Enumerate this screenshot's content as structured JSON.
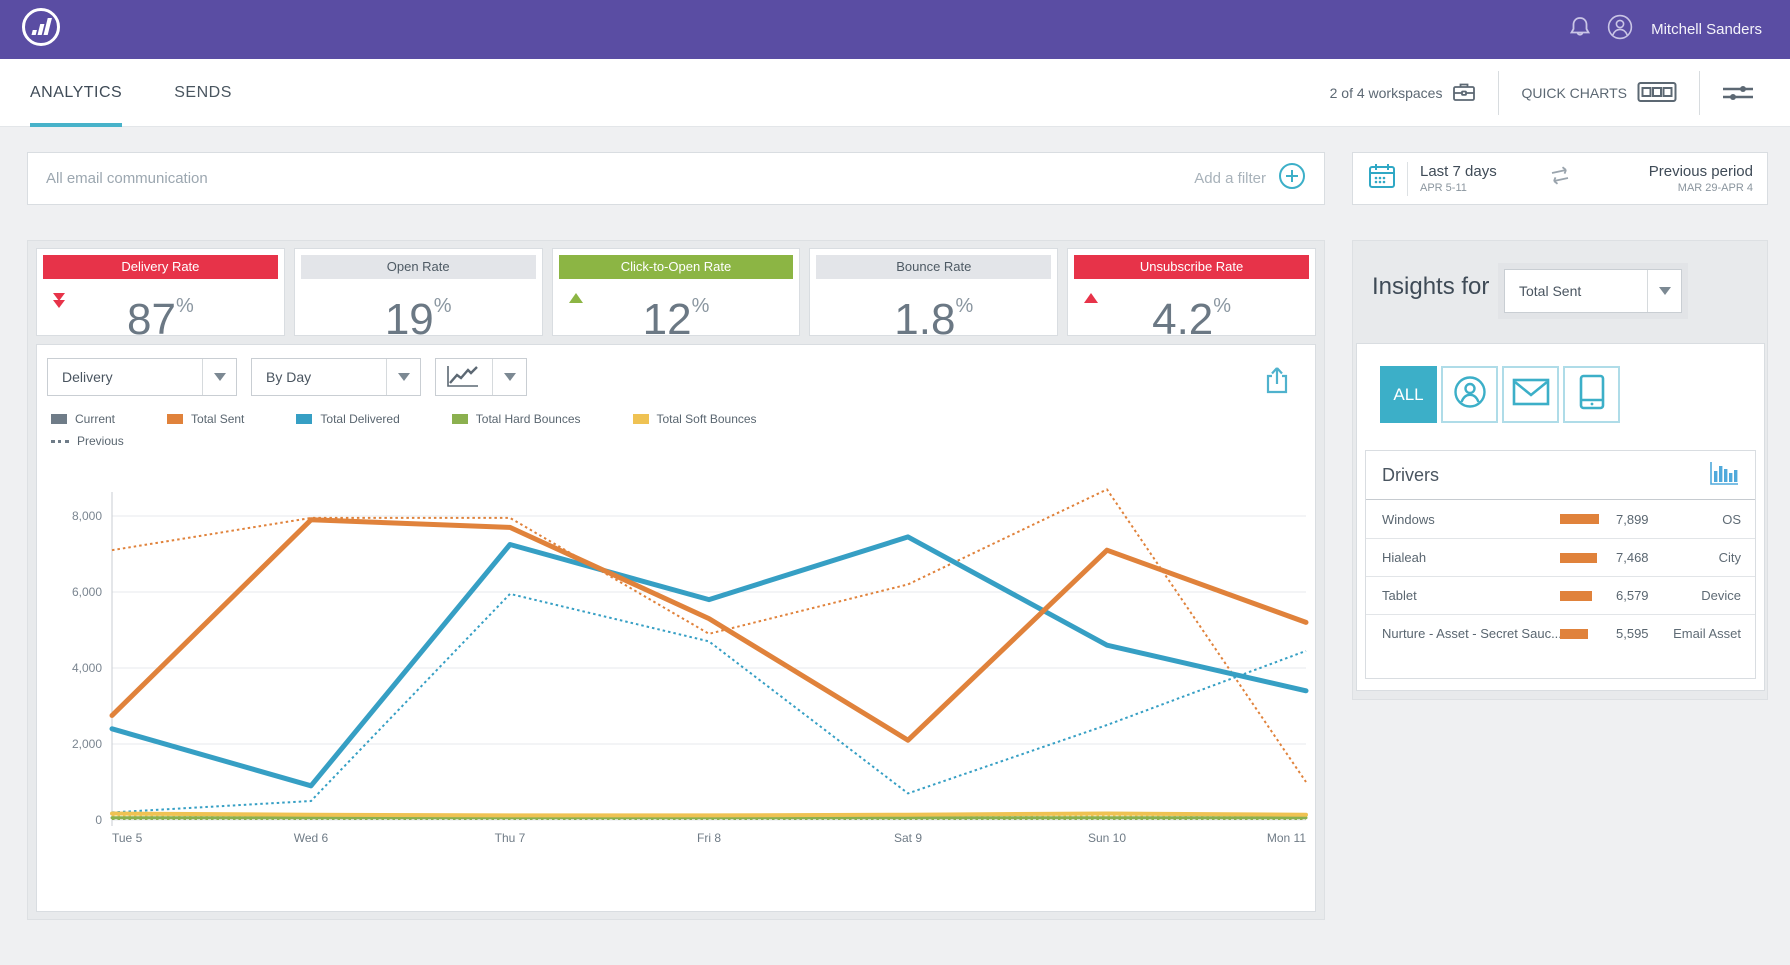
{
  "colors": {
    "brand_purple": "#5A4DA3",
    "accent_teal": "#3CAFC8",
    "kpi_red": "#E73349",
    "kpi_green": "#8CB544",
    "series_orange": "#E0823B",
    "series_blue": "#369FC4",
    "series_green": "#8BB04F",
    "series_yellow": "#EFC253",
    "series_gray": "#6F7C88"
  },
  "topbar": {
    "user_name": "Mitchell Sanders"
  },
  "nav": {
    "tab_analytics": "ANALYTICS",
    "tab_sends": "SENDS",
    "workspaces": "2 of 4 workspaces",
    "quick_charts": "QUICK CHARTS"
  },
  "filter_bar": {
    "scope": "All email communication",
    "add_filter": "Add a filter"
  },
  "date_panel": {
    "range_label": "Last 7 days",
    "range_dates": "APR 5-11",
    "compare_label": "Previous period",
    "compare_dates": "MAR 29-APR 4"
  },
  "kpis": [
    {
      "label": "Delivery Rate",
      "value": "87",
      "unit": "%",
      "band": "red",
      "trend": "down-double"
    },
    {
      "label": "Open Rate",
      "value": "19",
      "unit": "%",
      "band": "gray",
      "trend": "none"
    },
    {
      "label": "Click-to-Open Rate",
      "value": "12",
      "unit": "%",
      "band": "green",
      "trend": "up"
    },
    {
      "label": "Bounce Rate",
      "value": "1.8",
      "unit": "%",
      "band": "gray",
      "trend": "none"
    },
    {
      "label": "Unsubscribe Rate",
      "value": "4.2",
      "unit": "%",
      "band": "red",
      "trend": "up"
    }
  ],
  "chart_controls": {
    "metric": "Delivery",
    "grouping": "By Day"
  },
  "legend": {
    "row1": [
      {
        "label": "Current",
        "color": "#6F7C88"
      },
      {
        "label": "Total Sent",
        "color": "#E0823B"
      },
      {
        "label": "Total Delivered",
        "color": "#369FC4"
      },
      {
        "label": "Total Hard Bounces",
        "color": "#8BB04F"
      },
      {
        "label": "Total Soft Bounces",
        "color": "#EFC253"
      }
    ],
    "row2_label": "Previous"
  },
  "chart_data": {
    "type": "line",
    "x": [
      "Tue 5",
      "Wed 6",
      "Thu 7",
      "Fri 8",
      "Sat 9",
      "Sun 10",
      "Mon 11"
    ],
    "yticks": [
      0,
      2000,
      4000,
      6000,
      8000
    ],
    "ylim": [
      0,
      8800
    ],
    "grid": true,
    "series": [
      {
        "name": "Total Sent",
        "period": "current",
        "style": "solid",
        "color": "#E0823B",
        "width": 5,
        "values": [
          2750,
          7900,
          7700,
          5300,
          2100,
          7100,
          5200
        ]
      },
      {
        "name": "Total Delivered",
        "period": "current",
        "style": "solid",
        "color": "#369FC4",
        "width": 5,
        "values": [
          2400,
          900,
          7250,
          5800,
          7450,
          4600,
          3400
        ]
      },
      {
        "name": "Total Hard Bounces",
        "period": "current",
        "style": "solid",
        "color": "#8BB04F",
        "width": 3,
        "values": [
          60,
          60,
          60,
          60,
          60,
          60,
          60
        ]
      },
      {
        "name": "Total Soft Bounces",
        "period": "current",
        "style": "solid",
        "color": "#EFC253",
        "width": 4,
        "values": [
          170,
          140,
          120,
          120,
          140,
          170,
          140
        ]
      },
      {
        "name": "Total Sent",
        "period": "previous",
        "style": "dotted",
        "color": "#E0823B",
        "width": 2,
        "values": [
          7100,
          7950,
          7950,
          4900,
          6200,
          8700,
          1000
        ]
      },
      {
        "name": "Total Delivered",
        "period": "previous",
        "style": "dotted",
        "color": "#369FC4",
        "width": 2,
        "values": [
          200,
          500,
          5950,
          4700,
          700,
          2500,
          4450
        ]
      },
      {
        "name": "Total Hard Bounces",
        "period": "previous",
        "style": "dotted",
        "color": "#8BB04F",
        "width": 1.5,
        "values": [
          20,
          20,
          20,
          20,
          20,
          20,
          20
        ]
      },
      {
        "name": "Total Soft Bounces",
        "period": "previous",
        "style": "dotted",
        "color": "#EFC253",
        "width": 1.5,
        "values": [
          100,
          90,
          80,
          80,
          90,
          100,
          90
        ]
      }
    ]
  },
  "insights": {
    "title": "Insights for",
    "metric_selector": "Total Sent",
    "filter_all": "ALL",
    "drivers_title": "Drivers",
    "drivers": [
      {
        "name": "Windows",
        "value": "7,899",
        "bar": 7899,
        "category": "OS"
      },
      {
        "name": "Hialeah",
        "value": "7,468",
        "bar": 7468,
        "category": "City"
      },
      {
        "name": "Tablet",
        "value": "6,579",
        "bar": 6579,
        "category": "Device"
      },
      {
        "name": "Nurture - Asset - Secret Sauc...",
        "value": "5,595",
        "bar": 5595,
        "category": "Email Asset"
      }
    ]
  }
}
